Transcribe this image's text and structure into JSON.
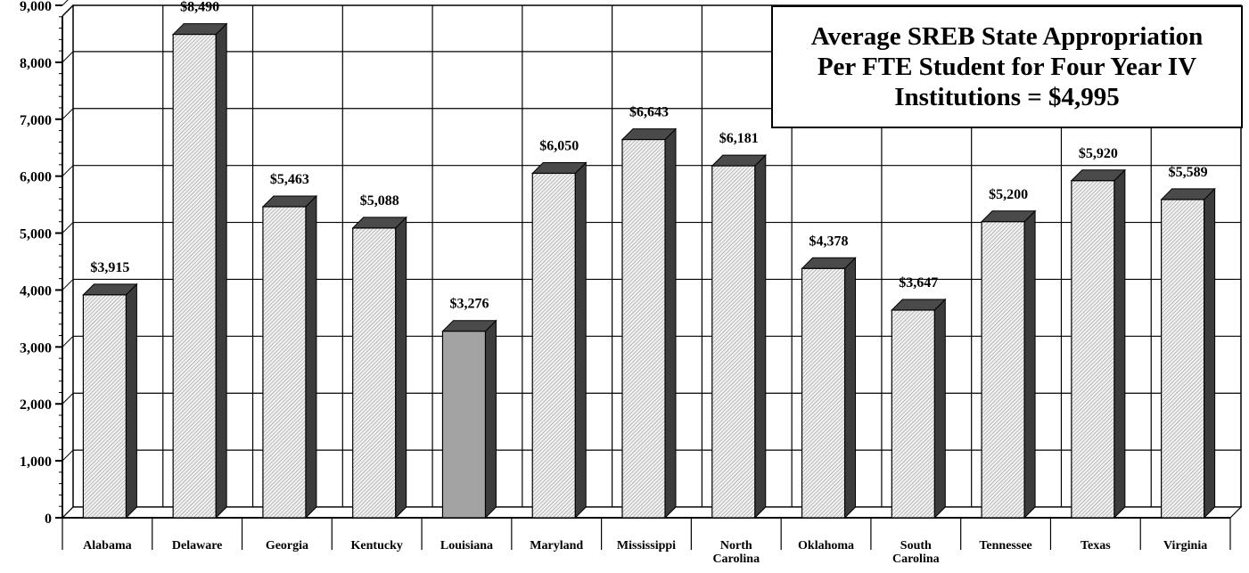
{
  "chart_data": {
    "type": "bar",
    "title_lines": [
      "Average SREB State Appropriation",
      "Per FTE Student for Four Year IV",
      "Institutions = $4,995"
    ],
    "categories": [
      [
        "Alabama"
      ],
      [
        "Delaware"
      ],
      [
        "Georgia"
      ],
      [
        "Kentucky"
      ],
      [
        "Louisiana"
      ],
      [
        "Maryland"
      ],
      [
        "Mississippi"
      ],
      [
        "North",
        "Carolina"
      ],
      [
        "Oklahoma"
      ],
      [
        "South",
        "Carolina"
      ],
      [
        "Tennessee"
      ],
      [
        "Texas"
      ],
      [
        "Virginia"
      ]
    ],
    "values": [
      3915,
      8490,
      5463,
      5088,
      3276,
      6050,
      6643,
      6181,
      4378,
      3647,
      5200,
      5920,
      5589
    ],
    "value_labels": [
      "$3,915",
      "$8,490",
      "$5,463",
      "$5,088",
      "$3,276",
      "$6,050",
      "$6,643",
      "$6,181",
      "$4,378",
      "$3,647",
      "$5,200",
      "$5,920",
      "$5,589"
    ],
    "highlight_index": 4,
    "ylim": [
      0,
      9000
    ],
    "yticks": [
      0,
      1000,
      2000,
      3000,
      4000,
      5000,
      6000,
      7000,
      8000,
      9000
    ],
    "ytick_labels": [
      "0",
      "1,000",
      "2,000",
      "3,000",
      "4,000",
      "5,000",
      "6,000",
      "7,000",
      "8,000",
      "9,000"
    ],
    "grid": true,
    "legend": "none",
    "colors": {
      "bar_face": "#f0f0f0",
      "bar_hatch": "#8a8a8a",
      "bar_highlight": "#a3a3a3",
      "bar_side": "#3c3c3c",
      "bar_top": "#4a4a4a",
      "grid": "#000000"
    }
  }
}
